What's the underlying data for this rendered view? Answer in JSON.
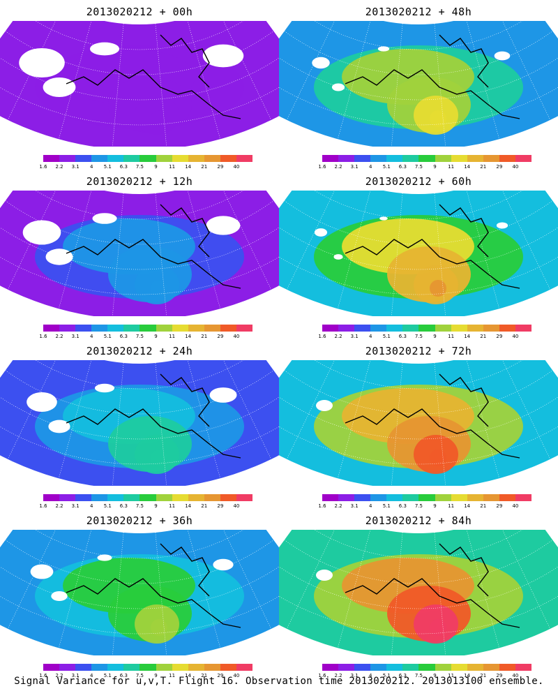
{
  "panels": [
    {
      "title": "2013020212 + 00h",
      "intensity": 0.1
    },
    {
      "title": "2013020212 + 12h",
      "intensity": 0.25
    },
    {
      "title": "2013020212 + 24h",
      "intensity": 0.4
    },
    {
      "title": "2013020212 + 36h",
      "intensity": 0.55
    },
    {
      "title": "2013020212 + 48h",
      "intensity": 0.65
    },
    {
      "title": "2013020212 + 60h",
      "intensity": 0.75
    },
    {
      "title": "2013020212 + 72h",
      "intensity": 0.85
    },
    {
      "title": "2013020212 + 84h",
      "intensity": 0.92
    }
  ],
  "colorbar": {
    "colors": [
      "#a000c8",
      "#8c1ee6",
      "#3c50f0",
      "#1e96e6",
      "#14bede",
      "#1ecba0",
      "#28cc3c",
      "#a0d23c",
      "#e6dc32",
      "#e6b432",
      "#e69632",
      "#f05a28",
      "#f03c64"
    ],
    "ticks": [
      "1.6",
      "2.2",
      "3.1",
      "4",
      "5.1",
      "6.3",
      "7.5",
      "9",
      "11",
      "14",
      "21",
      "29",
      "40"
    ]
  },
  "caption": "Signal Variance for u,v,T. Flight 16. Observation time 2013020212. 2013013100 ensemble."
}
